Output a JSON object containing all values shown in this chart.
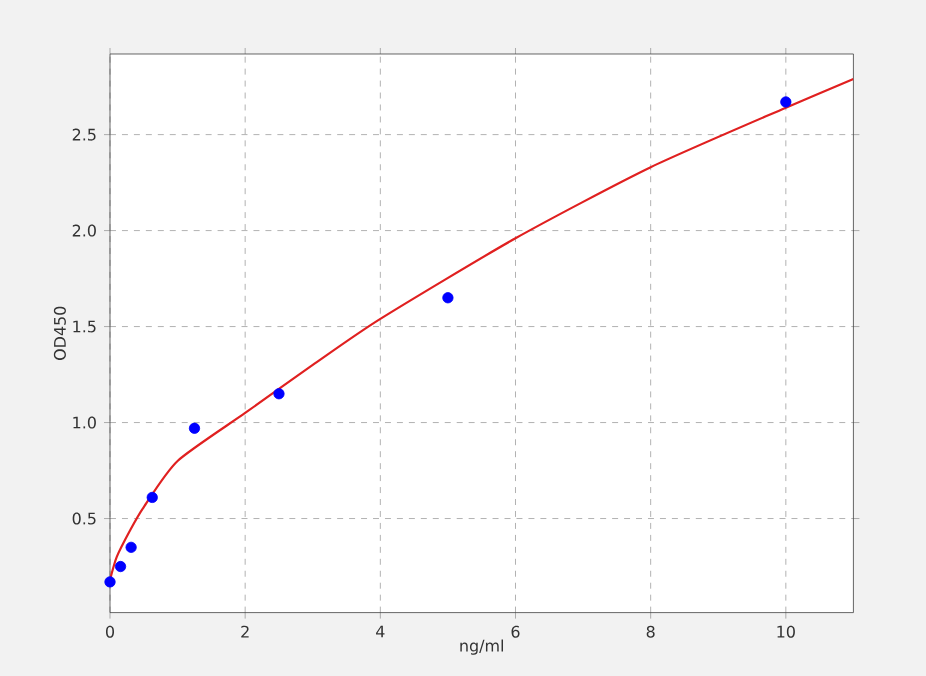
{
  "chart_data": {
    "type": "scatter",
    "xlabel": "ng/ml",
    "ylabel": "OD450",
    "xlim": [
      0,
      11
    ],
    "ylim": [
      0.01,
      2.92
    ],
    "xticks": [
      0,
      2,
      4,
      6,
      8,
      10
    ],
    "yticks": [
      0.5,
      {
        "value": 1,
        "label": "1.0"
      },
      1.5,
      {
        "value": 2,
        "label": "2.0"
      },
      2.5
    ],
    "grid": true,
    "series": [
      {
        "color": "#0000ff",
        "marker": "circle",
        "x": [
          0,
          0.156,
          0.3125,
          0.625,
          1.25,
          2.5,
          5,
          10
        ],
        "values": [
          0.17,
          0.25,
          0.35,
          0.61,
          0.97,
          1.15,
          1.65,
          2.67
        ]
      },
      {
        "type": "line",
        "color": "#e02020",
        "marker": "none",
        "x": [
          0,
          0.1,
          0.3,
          0.5,
          1,
          2,
          3,
          4,
          6,
          8,
          10,
          11
        ],
        "values": [
          0.18,
          0.3,
          0.44,
          0.56,
          0.8,
          1.05,
          1.3,
          1.54,
          1.96,
          2.33,
          2.64,
          2.79
        ]
      }
    ]
  }
}
